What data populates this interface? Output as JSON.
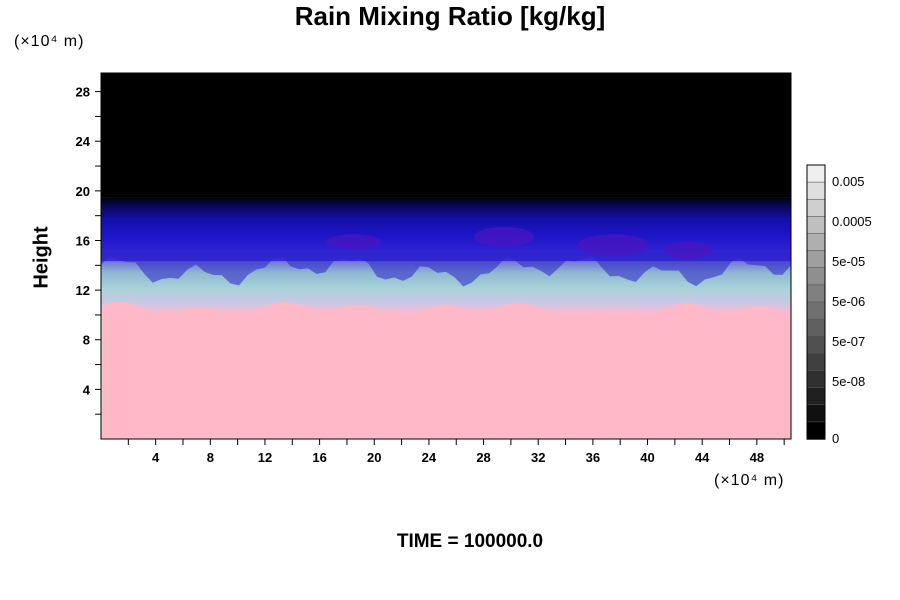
{
  "chart_data": {
    "type": "heatmap",
    "title": "Rain Mixing Ratio [kg/kg]",
    "ylabel": "Height",
    "xlabel": "",
    "x_unit": "(×10⁴ m)",
    "y_unit": "(×10⁴ m)",
    "x_ticks": [
      4,
      8,
      12,
      16,
      20,
      24,
      28,
      32,
      36,
      40,
      44,
      48
    ],
    "y_ticks": [
      4,
      8,
      12,
      16,
      20,
      24,
      28
    ],
    "xlim": [
      0,
      50.5
    ],
    "ylim": [
      0,
      29.5
    ],
    "colorbar": {
      "labels": [
        "0.005",
        "0.0005",
        "5e-05",
        "5e-06",
        "5e-07",
        "5e-08",
        "0"
      ],
      "n_levels": 16
    },
    "regions": [
      {
        "name": "upper",
        "y_range": [
          19.5,
          29.5
        ],
        "color": "#000000"
      },
      {
        "name": "band",
        "y_range": [
          14.5,
          19.5
        ],
        "color": "#1e10b8"
      },
      {
        "name": "transition",
        "y_range": [
          10.5,
          14.5
        ],
        "color": "#a9cdd6"
      },
      {
        "name": "lower",
        "y_range": [
          0,
          10.5
        ],
        "color": "#ffb8c8"
      }
    ]
  },
  "footer": "TIME = 100000.0"
}
